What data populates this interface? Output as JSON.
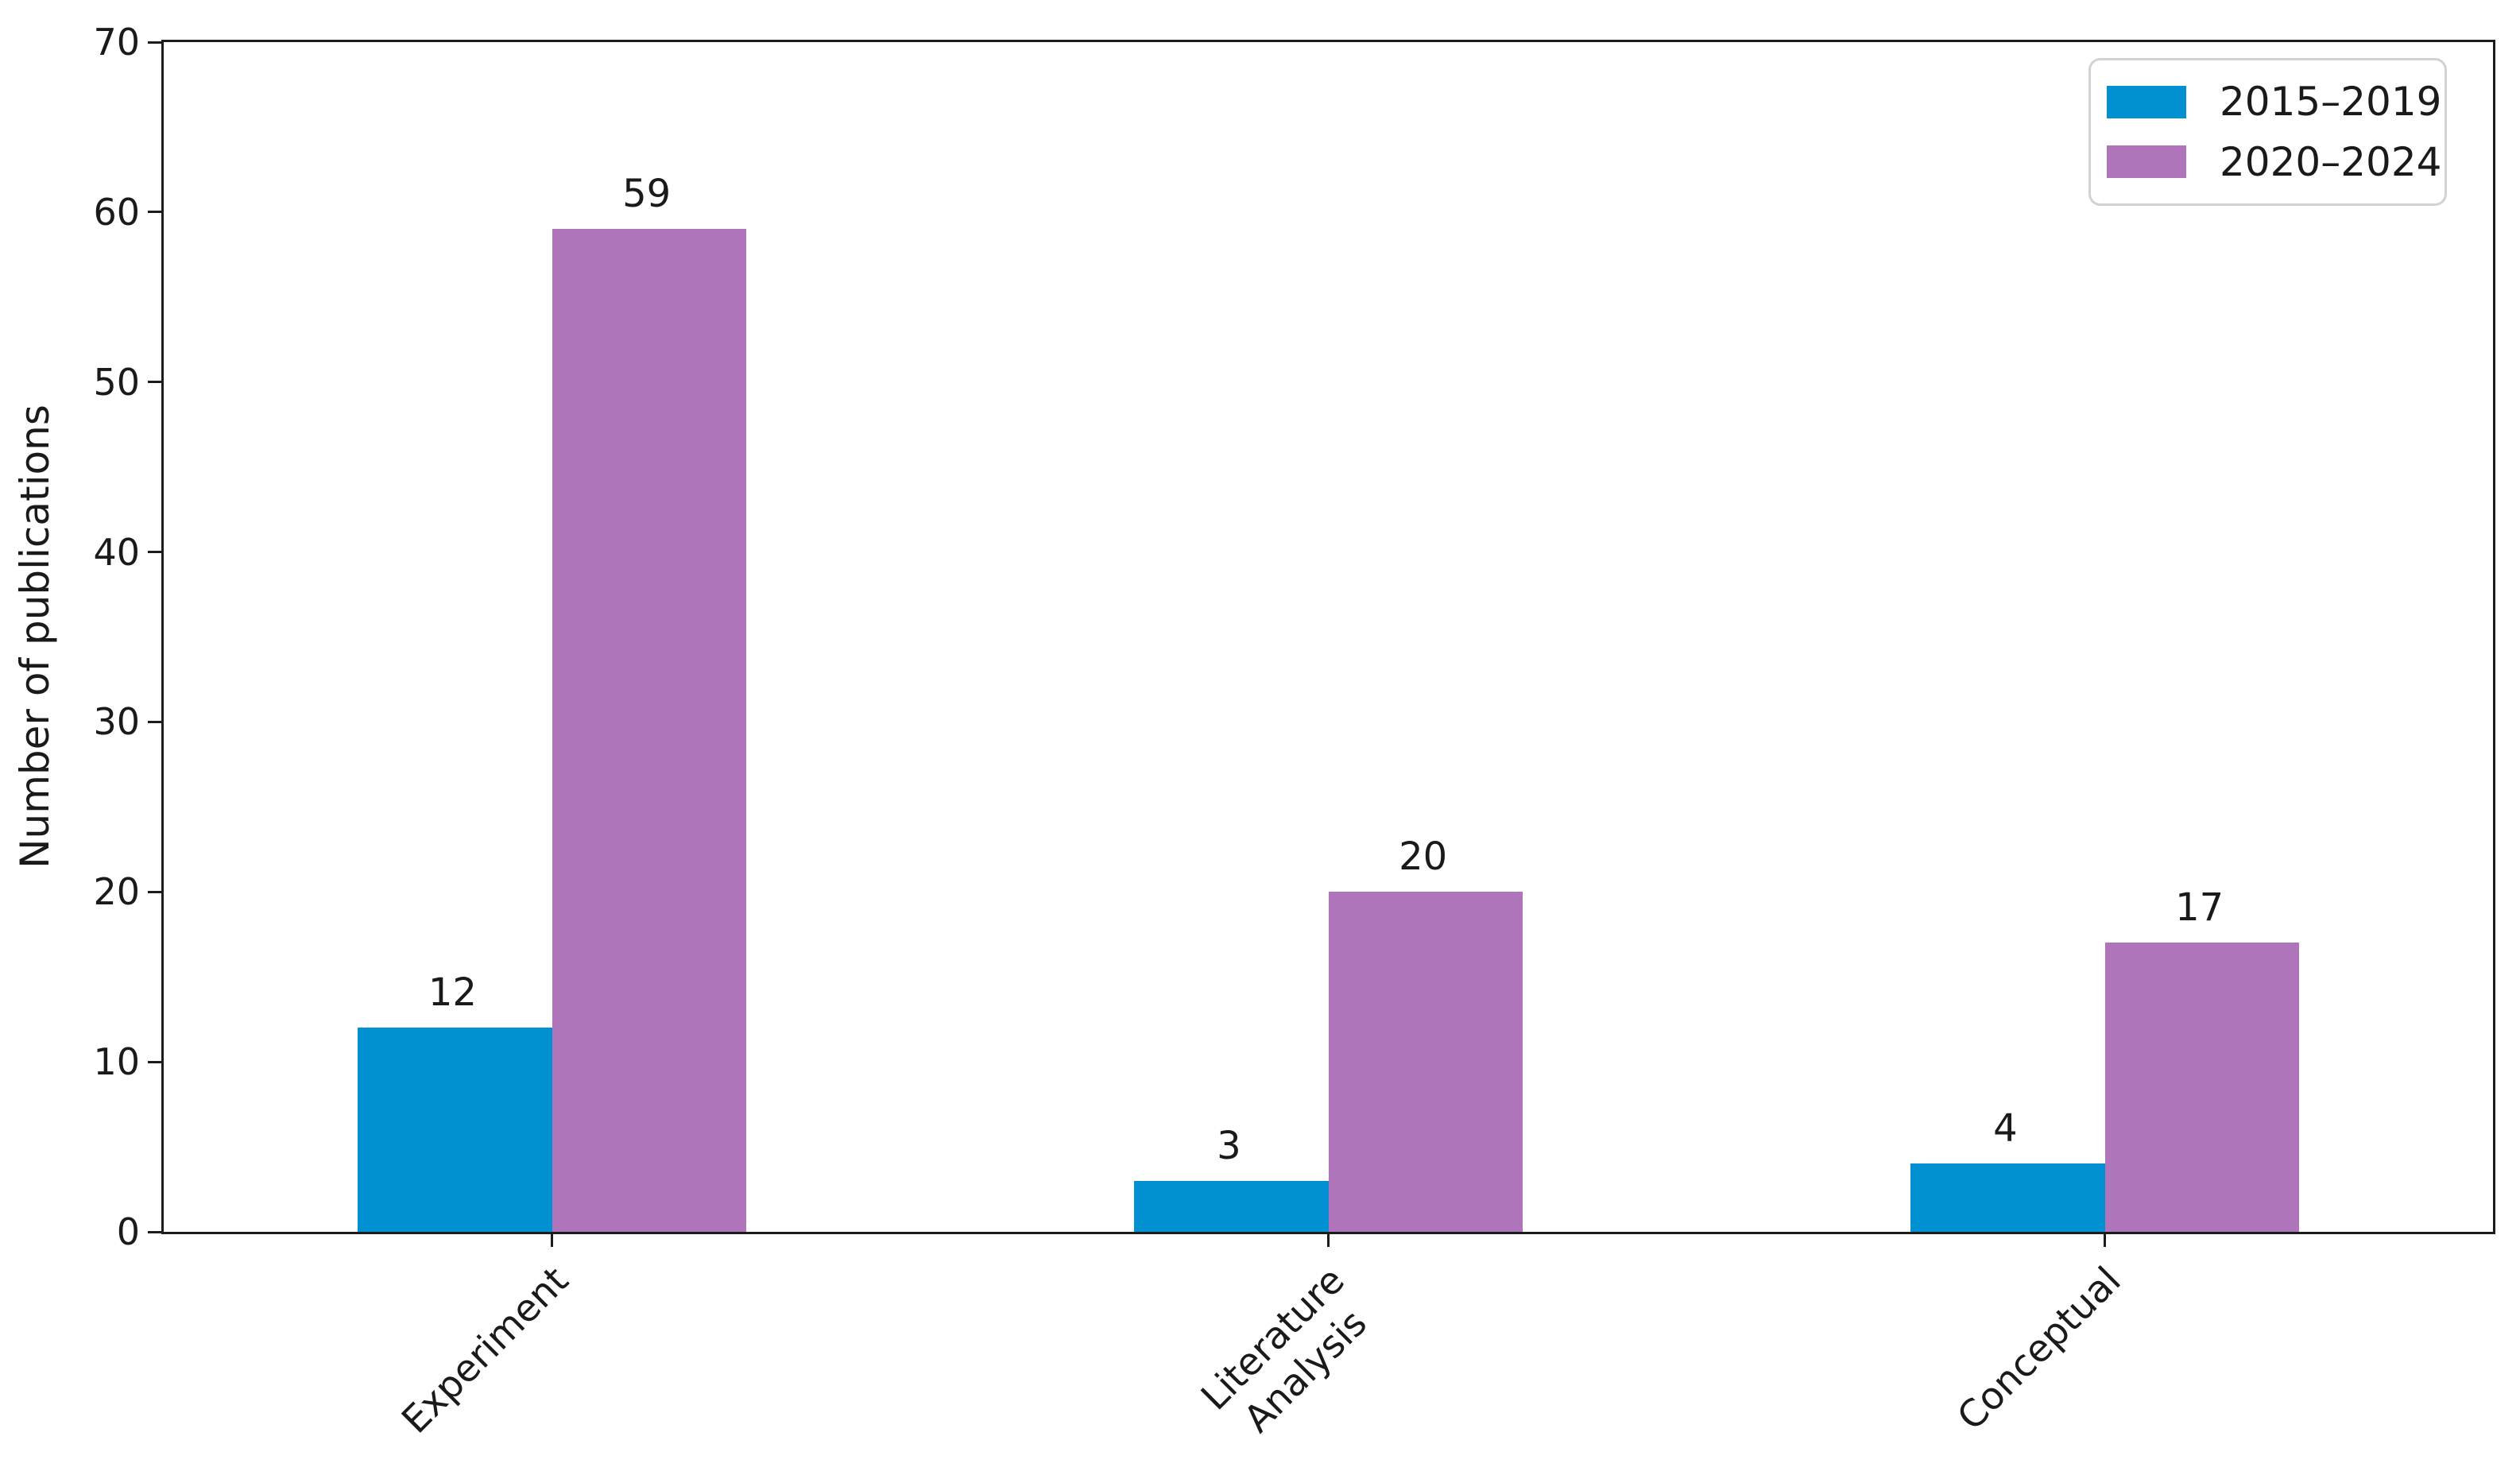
{
  "chart_data": {
    "type": "bar",
    "title": "",
    "xlabel": "",
    "ylabel": "Number of publications",
    "categories": [
      "Experiment",
      "Literature\nAnalysis",
      "Conceptual"
    ],
    "series": [
      {
        "name": "2015–2019",
        "color": "#0190d2",
        "values": [
          12,
          3,
          4
        ]
      },
      {
        "name": "2020–2024",
        "color": "#b074ba",
        "values": [
          59,
          20,
          17
        ]
      }
    ],
    "ylim": [
      0,
      70
    ],
    "yticks": [
      0,
      10,
      20,
      30,
      40,
      50,
      60,
      70
    ],
    "grid": false,
    "show_value_labels": true,
    "legend_position": "upper right",
    "x_tick_rotation_deg": 45,
    "colors": {
      "axis": "#1c1c1c",
      "text": "#1a1a1a",
      "legend_border": "#d2d2d2",
      "background": "#ffffff"
    }
  }
}
